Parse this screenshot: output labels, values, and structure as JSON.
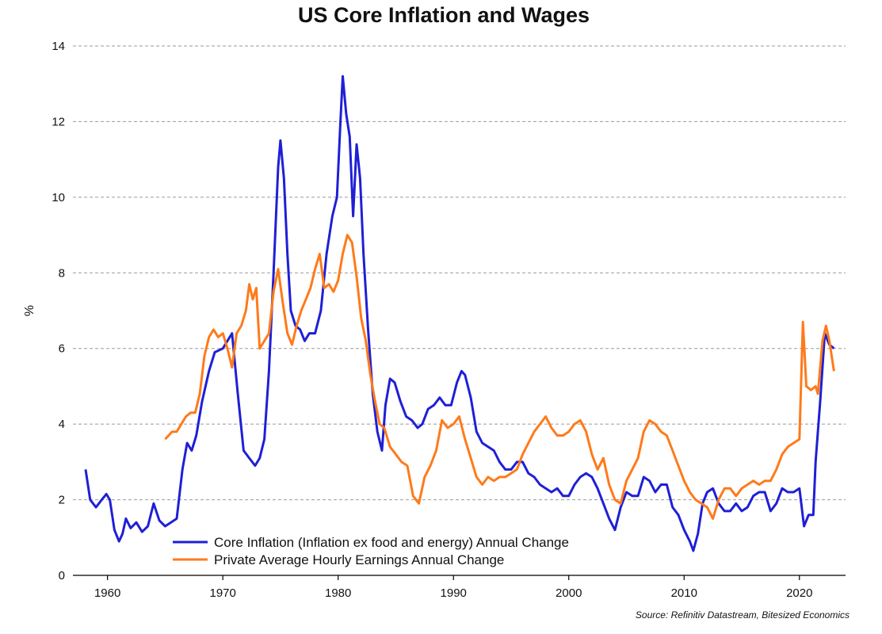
{
  "chart_data": {
    "type": "line",
    "title": "US Core Inflation and Wages",
    "ylabel": "%",
    "xlabel": "",
    "xlim": [
      1957,
      2024
    ],
    "ylim": [
      0,
      14
    ],
    "xticks": [
      1960,
      1970,
      1980,
      1990,
      2000,
      2010,
      2020
    ],
    "yticks": [
      0,
      2,
      4,
      6,
      8,
      10,
      12,
      14
    ],
    "grid": "horizontal dashed",
    "legend_position": "bottom-left",
    "source": "Source: Refinitiv Datastream, Bitesized Economics",
    "colors": {
      "core": "#1f1fd6",
      "wages": "#ff7a1a",
      "grid": "#9a9a9a"
    },
    "series": [
      {
        "name": "Core Inflation (Inflation ex food and energy) Annual Change",
        "points": [
          [
            1958.1,
            2.8
          ],
          [
            1958.5,
            2.0
          ],
          [
            1959.0,
            1.8
          ],
          [
            1959.5,
            2.0
          ],
          [
            1959.9,
            2.15
          ],
          [
            1960.2,
            2.0
          ],
          [
            1960.6,
            1.2
          ],
          [
            1961.0,
            0.9
          ],
          [
            1961.3,
            1.1
          ],
          [
            1961.6,
            1.5
          ],
          [
            1962.0,
            1.25
          ],
          [
            1962.5,
            1.4
          ],
          [
            1963.0,
            1.15
          ],
          [
            1963.5,
            1.3
          ],
          [
            1964.0,
            1.9
          ],
          [
            1964.5,
            1.45
          ],
          [
            1965.0,
            1.3
          ],
          [
            1965.5,
            1.4
          ],
          [
            1966.0,
            1.5
          ],
          [
            1966.5,
            2.8
          ],
          [
            1966.9,
            3.5
          ],
          [
            1967.3,
            3.3
          ],
          [
            1967.7,
            3.7
          ],
          [
            1968.2,
            4.6
          ],
          [
            1968.8,
            5.4
          ],
          [
            1969.3,
            5.9
          ],
          [
            1970.0,
            6.0
          ],
          [
            1970.4,
            6.2
          ],
          [
            1970.8,
            6.4
          ],
          [
            1971.3,
            4.8
          ],
          [
            1971.8,
            3.3
          ],
          [
            1972.3,
            3.1
          ],
          [
            1972.8,
            2.9
          ],
          [
            1973.2,
            3.1
          ],
          [
            1973.6,
            3.6
          ],
          [
            1974.0,
            5.4
          ],
          [
            1974.4,
            8.0
          ],
          [
            1974.8,
            10.8
          ],
          [
            1975.0,
            11.5
          ],
          [
            1975.3,
            10.5
          ],
          [
            1975.6,
            8.5
          ],
          [
            1975.9,
            7.0
          ],
          [
            1976.3,
            6.6
          ],
          [
            1976.7,
            6.5
          ],
          [
            1977.1,
            6.2
          ],
          [
            1977.5,
            6.4
          ],
          [
            1978.0,
            6.4
          ],
          [
            1978.5,
            7.0
          ],
          [
            1979.0,
            8.5
          ],
          [
            1979.5,
            9.5
          ],
          [
            1979.9,
            10.0
          ],
          [
            1980.2,
            12.0
          ],
          [
            1980.4,
            13.2
          ],
          [
            1980.7,
            12.2
          ],
          [
            1981.0,
            11.6
          ],
          [
            1981.3,
            9.5
          ],
          [
            1981.6,
            11.4
          ],
          [
            1981.9,
            10.5
          ],
          [
            1982.2,
            8.5
          ],
          [
            1982.6,
            6.5
          ],
          [
            1983.0,
            4.8
          ],
          [
            1983.4,
            3.8
          ],
          [
            1983.8,
            3.3
          ],
          [
            1984.1,
            4.5
          ],
          [
            1984.5,
            5.2
          ],
          [
            1984.9,
            5.1
          ],
          [
            1985.4,
            4.6
          ],
          [
            1985.9,
            4.2
          ],
          [
            1986.4,
            4.1
          ],
          [
            1986.9,
            3.9
          ],
          [
            1987.3,
            4.0
          ],
          [
            1987.8,
            4.4
          ],
          [
            1988.3,
            4.5
          ],
          [
            1988.8,
            4.7
          ],
          [
            1989.3,
            4.5
          ],
          [
            1989.8,
            4.5
          ],
          [
            1990.3,
            5.1
          ],
          [
            1990.7,
            5.4
          ],
          [
            1991.0,
            5.3
          ],
          [
            1991.5,
            4.7
          ],
          [
            1992.0,
            3.8
          ],
          [
            1992.5,
            3.5
          ],
          [
            1993.0,
            3.4
          ],
          [
            1993.5,
            3.3
          ],
          [
            1994.0,
            3.0
          ],
          [
            1994.5,
            2.8
          ],
          [
            1995.0,
            2.8
          ],
          [
            1995.5,
            3.0
          ],
          [
            1996.0,
            3.0
          ],
          [
            1996.5,
            2.7
          ],
          [
            1997.0,
            2.6
          ],
          [
            1997.5,
            2.4
          ],
          [
            1998.0,
            2.3
          ],
          [
            1998.5,
            2.2
          ],
          [
            1999.0,
            2.3
          ],
          [
            1999.5,
            2.1
          ],
          [
            2000.0,
            2.1
          ],
          [
            2000.5,
            2.4
          ],
          [
            2001.0,
            2.6
          ],
          [
            2001.5,
            2.7
          ],
          [
            2002.0,
            2.6
          ],
          [
            2002.5,
            2.3
          ],
          [
            2003.0,
            1.9
          ],
          [
            2003.5,
            1.5
          ],
          [
            2004.0,
            1.2
          ],
          [
            2004.5,
            1.8
          ],
          [
            2005.0,
            2.2
          ],
          [
            2005.5,
            2.1
          ],
          [
            2006.0,
            2.1
          ],
          [
            2006.5,
            2.6
          ],
          [
            2007.0,
            2.5
          ],
          [
            2007.5,
            2.2
          ],
          [
            2008.0,
            2.4
          ],
          [
            2008.5,
            2.4
          ],
          [
            2009.0,
            1.8
          ],
          [
            2009.5,
            1.6
          ],
          [
            2010.0,
            1.2
          ],
          [
            2010.5,
            0.9
          ],
          [
            2010.8,
            0.65
          ],
          [
            2011.2,
            1.1
          ],
          [
            2011.6,
            1.9
          ],
          [
            2012.0,
            2.2
          ],
          [
            2012.5,
            2.3
          ],
          [
            2013.0,
            1.9
          ],
          [
            2013.5,
            1.7
          ],
          [
            2014.0,
            1.7
          ],
          [
            2014.5,
            1.9
          ],
          [
            2015.0,
            1.7
          ],
          [
            2015.5,
            1.8
          ],
          [
            2016.0,
            2.1
          ],
          [
            2016.5,
            2.2
          ],
          [
            2017.0,
            2.2
          ],
          [
            2017.5,
            1.7
          ],
          [
            2018.0,
            1.9
          ],
          [
            2018.5,
            2.3
          ],
          [
            2019.0,
            2.2
          ],
          [
            2019.5,
            2.2
          ],
          [
            2020.0,
            2.3
          ],
          [
            2020.4,
            1.3
          ],
          [
            2020.8,
            1.6
          ],
          [
            2021.2,
            1.6
          ],
          [
            2021.4,
            3.0
          ],
          [
            2021.8,
            4.6
          ],
          [
            2022.2,
            6.4
          ],
          [
            2022.6,
            6.1
          ],
          [
            2023.0,
            6.0
          ]
        ]
      },
      {
        "name": "Private Average Hourly Earnings Annual Change",
        "points": [
          [
            1965.0,
            3.6
          ],
          [
            1965.3,
            3.7
          ],
          [
            1965.6,
            3.8
          ],
          [
            1966.0,
            3.8
          ],
          [
            1966.4,
            4.0
          ],
          [
            1966.8,
            4.2
          ],
          [
            1967.2,
            4.3
          ],
          [
            1967.6,
            4.3
          ],
          [
            1968.0,
            4.8
          ],
          [
            1968.4,
            5.8
          ],
          [
            1968.8,
            6.3
          ],
          [
            1969.2,
            6.5
          ],
          [
            1969.6,
            6.3
          ],
          [
            1970.0,
            6.4
          ],
          [
            1970.4,
            6.0
          ],
          [
            1970.8,
            5.5
          ],
          [
            1971.2,
            6.4
          ],
          [
            1971.6,
            6.6
          ],
          [
            1972.0,
            7.0
          ],
          [
            1972.3,
            7.7
          ],
          [
            1972.6,
            7.3
          ],
          [
            1972.9,
            7.6
          ],
          [
            1973.2,
            6.0
          ],
          [
            1973.6,
            6.2
          ],
          [
            1974.0,
            6.4
          ],
          [
            1974.4,
            7.5
          ],
          [
            1974.8,
            8.1
          ],
          [
            1975.2,
            7.2
          ],
          [
            1975.6,
            6.4
          ],
          [
            1976.0,
            6.1
          ],
          [
            1976.4,
            6.6
          ],
          [
            1976.8,
            7.0
          ],
          [
            1977.2,
            7.3
          ],
          [
            1977.6,
            7.6
          ],
          [
            1978.0,
            8.1
          ],
          [
            1978.4,
            8.5
          ],
          [
            1978.8,
            7.6
          ],
          [
            1979.2,
            7.7
          ],
          [
            1979.6,
            7.5
          ],
          [
            1980.0,
            7.8
          ],
          [
            1980.4,
            8.5
          ],
          [
            1980.8,
            9.0
          ],
          [
            1981.2,
            8.8
          ],
          [
            1981.6,
            7.9
          ],
          [
            1982.0,
            6.8
          ],
          [
            1982.4,
            6.2
          ],
          [
            1982.8,
            5.3
          ],
          [
            1983.2,
            4.6
          ],
          [
            1983.6,
            4.0
          ],
          [
            1984.0,
            3.9
          ],
          [
            1984.5,
            3.4
          ],
          [
            1985.0,
            3.2
          ],
          [
            1985.5,
            3.0
          ],
          [
            1986.0,
            2.9
          ],
          [
            1986.5,
            2.1
          ],
          [
            1987.0,
            1.9
          ],
          [
            1987.5,
            2.6
          ],
          [
            1988.0,
            2.9
          ],
          [
            1988.5,
            3.3
          ],
          [
            1989.0,
            4.1
          ],
          [
            1989.5,
            3.9
          ],
          [
            1990.0,
            4.0
          ],
          [
            1990.5,
            4.2
          ],
          [
            1991.0,
            3.6
          ],
          [
            1991.5,
            3.1
          ],
          [
            1992.0,
            2.6
          ],
          [
            1992.5,
            2.4
          ],
          [
            1993.0,
            2.6
          ],
          [
            1993.5,
            2.5
          ],
          [
            1994.0,
            2.6
          ],
          [
            1994.5,
            2.6
          ],
          [
            1995.0,
            2.7
          ],
          [
            1995.5,
            2.8
          ],
          [
            1996.0,
            3.2
          ],
          [
            1996.5,
            3.5
          ],
          [
            1997.0,
            3.8
          ],
          [
            1997.5,
            4.0
          ],
          [
            1998.0,
            4.2
          ],
          [
            1998.5,
            3.9
          ],
          [
            1999.0,
            3.7
          ],
          [
            1999.5,
            3.7
          ],
          [
            2000.0,
            3.8
          ],
          [
            2000.5,
            4.0
          ],
          [
            2001.0,
            4.1
          ],
          [
            2001.5,
            3.8
          ],
          [
            2002.0,
            3.2
          ],
          [
            2002.5,
            2.8
          ],
          [
            2003.0,
            3.1
          ],
          [
            2003.5,
            2.4
          ],
          [
            2004.0,
            2.0
          ],
          [
            2004.5,
            1.9
          ],
          [
            2005.0,
            2.5
          ],
          [
            2005.5,
            2.8
          ],
          [
            2006.0,
            3.1
          ],
          [
            2006.5,
            3.8
          ],
          [
            2007.0,
            4.1
          ],
          [
            2007.5,
            4.0
          ],
          [
            2008.0,
            3.8
          ],
          [
            2008.5,
            3.7
          ],
          [
            2009.0,
            3.3
          ],
          [
            2009.5,
            2.9
          ],
          [
            2010.0,
            2.5
          ],
          [
            2010.5,
            2.2
          ],
          [
            2011.0,
            2.0
          ],
          [
            2011.5,
            1.9
          ],
          [
            2012.0,
            1.8
          ],
          [
            2012.5,
            1.5
          ],
          [
            2013.0,
            2.0
          ],
          [
            2013.5,
            2.3
          ],
          [
            2014.0,
            2.3
          ],
          [
            2014.5,
            2.1
          ],
          [
            2015.0,
            2.3
          ],
          [
            2015.5,
            2.4
          ],
          [
            2016.0,
            2.5
          ],
          [
            2016.5,
            2.4
          ],
          [
            2017.0,
            2.5
          ],
          [
            2017.5,
            2.5
          ],
          [
            2018.0,
            2.8
          ],
          [
            2018.5,
            3.2
          ],
          [
            2019.0,
            3.4
          ],
          [
            2019.5,
            3.5
          ],
          [
            2020.0,
            3.6
          ],
          [
            2020.3,
            6.7
          ],
          [
            2020.6,
            5.0
          ],
          [
            2021.0,
            4.9
          ],
          [
            2021.4,
            5.0
          ],
          [
            2021.6,
            4.8
          ],
          [
            2022.0,
            6.2
          ],
          [
            2022.3,
            6.6
          ],
          [
            2022.6,
            6.2
          ],
          [
            2023.0,
            5.4
          ]
        ]
      }
    ]
  }
}
